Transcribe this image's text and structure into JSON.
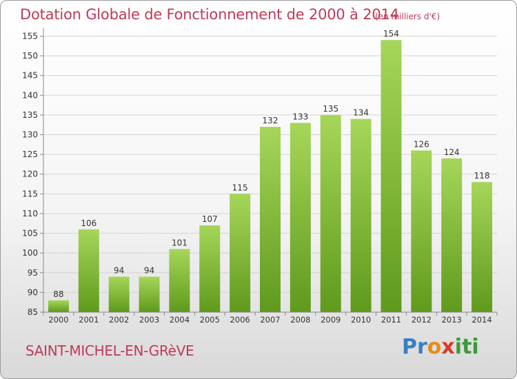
{
  "header": {
    "title": "Dotation Globale de Fonctionnement de 2000 à 2014",
    "unit": "(en milliers d'€)"
  },
  "footer": {
    "commune": "SAINT-MICHEL-EN-GRèVE",
    "logo_letters": [
      "P",
      "r",
      "o",
      "x",
      "i",
      "t",
      "i"
    ]
  },
  "colors": {
    "title": "#c0395a",
    "bar_top": "#a6d65a",
    "bar_bottom": "#5f9a1c",
    "logo": [
      "#3a7fc4",
      "#3a7fc4",
      "#e88a1a",
      "#d83a2a",
      "#3a9a3a",
      "#3a9a3a",
      "#3a9a3a"
    ]
  },
  "chart_data": {
    "type": "bar",
    "categories": [
      "2000",
      "2001",
      "2002",
      "2003",
      "2004",
      "2005",
      "2006",
      "2007",
      "2008",
      "2009",
      "2010",
      "2011",
      "2012",
      "2013",
      "2014"
    ],
    "values": [
      88,
      106,
      94,
      94,
      101,
      107,
      115,
      132,
      133,
      135,
      134,
      154,
      126,
      124,
      118
    ],
    "value_labels": [
      "88",
      "106",
      "94",
      "94",
      "101",
      "107",
      "115",
      "132",
      "133",
      "135",
      "134",
      "154",
      "126",
      "124",
      "118"
    ],
    "title": "Dotation Globale de Fonctionnement de 2000 à 2014",
    "xlabel": "",
    "ylabel": "",
    "ylim": [
      85,
      157
    ],
    "yticks": [
      "85",
      "90",
      "95",
      "100",
      "105",
      "110",
      "115",
      "120",
      "125",
      "130",
      "135",
      "140",
      "145",
      "150",
      "155"
    ],
    "grid": true,
    "legend": "none"
  }
}
